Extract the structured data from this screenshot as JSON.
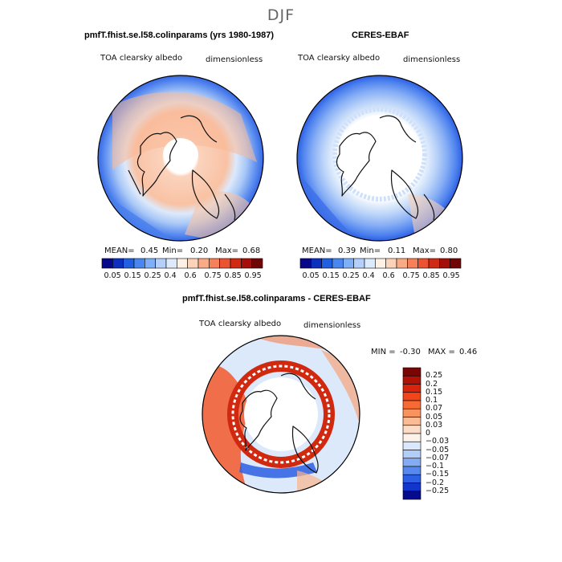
{
  "suptitle": "DJF",
  "panels": [
    {
      "title": "pmfT.fhist.se.l58.colinparams (yrs 1980-1987)",
      "variable": "TOA clearsky albedo",
      "units": "dimensionless",
      "stats": {
        "mean_label": "MEAN=",
        "mean": "0.45",
        "min_label": "Min=",
        "min": "0.20",
        "max_label": "Max=",
        "max": "0.68"
      }
    },
    {
      "title": "CERES-EBAF",
      "variable": "TOA clearsky albedo",
      "units": "dimensionless",
      "stats": {
        "mean_label": "MEAN=",
        "mean": "0.39",
        "min_label": "Min=",
        "min": "0.11",
        "max_label": "Max=",
        "max": "0.80"
      }
    }
  ],
  "colorbar_top": {
    "colors": [
      "#08088a",
      "#0b2fbf",
      "#1f5fe0",
      "#4a86f0",
      "#7fb0f7",
      "#b4d0fa",
      "#ddeafc",
      "#fdf1e6",
      "#fcd2b8",
      "#f9ab86",
      "#f5805a",
      "#ec5333",
      "#d02a14",
      "#a50f0a",
      "#700505"
    ],
    "labels": [
      "0.05",
      "0.15",
      "0.25",
      "0.4",
      "0.6",
      "0.75",
      "0.85",
      "0.95"
    ]
  },
  "diff": {
    "title": "pmfT.fhist.se.l58.colinparams - CERES-EBAF",
    "variable": "TOA clearsky albedo",
    "units": "dimensionless",
    "minmax": {
      "min_label": "MIN =",
      "min": "-0.30",
      "max_label": "MAX =",
      "max": "0.46"
    },
    "colorbar": {
      "colors": [
        "#7a0505",
        "#b01208",
        "#d8240c",
        "#f2451a",
        "#f76a33",
        "#f9935e",
        "#fbbb95",
        "#fcdcc6",
        "#fdf2ea",
        "#dbe8fb",
        "#b2cdf8",
        "#84acf4",
        "#5688ee",
        "#2c5fe3",
        "#1235cc",
        "#050a8f"
      ],
      "labels": [
        "0.25",
        "0.2",
        "0.15",
        "0.1",
        "0.07",
        "0.05",
        "0.03",
        "0",
        "−0.03",
        "−0.05",
        "−0.07",
        "−0.1",
        "−0.15",
        "−0.2",
        "−0.25"
      ]
    }
  }
}
